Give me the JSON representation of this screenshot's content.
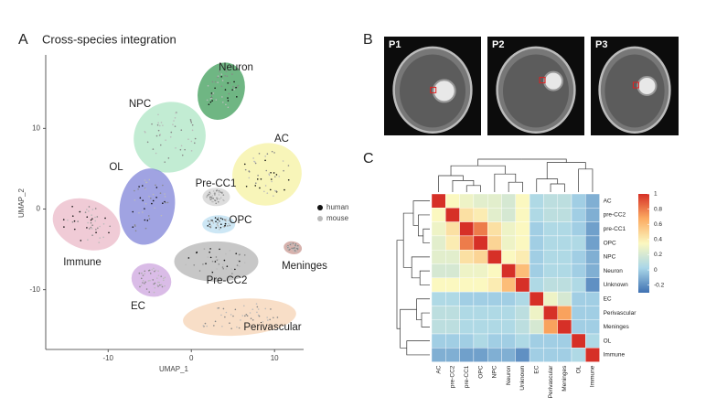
{
  "panels": {
    "a": "A",
    "b": "B",
    "c": "C"
  },
  "images": [
    {
      "label": "P1"
    },
    {
      "label": "P2"
    },
    {
      "label": "P3"
    }
  ],
  "chart_data": [
    {
      "type": "scatter",
      "title": "Cross-species integration",
      "x_label": "UMAP_1",
      "y_label": "UMAP_2",
      "xlim": [
        -17.5,
        13.5
      ],
      "ylim": [
        -17.4,
        19.1
      ],
      "xticks": [
        -10,
        0,
        10
      ],
      "yticks": [
        -10,
        0,
        10
      ],
      "grid": false,
      "clusters": [
        {
          "name": "Neuron",
          "color": "#3f9e5a",
          "x": 3.6,
          "y": 14.6
        },
        {
          "name": "NPC",
          "color": "#aee6c4",
          "x": -2.6,
          "y": 8.9
        },
        {
          "name": "AC",
          "color": "#f6f1a2",
          "x": 9.1,
          "y": 4.3
        },
        {
          "name": "OL",
          "color": "#8084d8",
          "x": -5.3,
          "y": 0.3
        },
        {
          "name": "Immune",
          "color": "#ebbac8",
          "x": -12.6,
          "y": -1.9
        },
        {
          "name": "Pre-CC1",
          "color": "#d2d2d2",
          "x": 3.0,
          "y": 1.5
        },
        {
          "name": "OPC",
          "color": "#bcdff2",
          "x": 3.3,
          "y": -1.9
        },
        {
          "name": "Pre-CC2",
          "color": "#b4b4b4",
          "x": 3.0,
          "y": -6.5
        },
        {
          "name": "EC",
          "color": "#cda5df",
          "x": -4.8,
          "y": -8.8
        },
        {
          "name": "Meninges",
          "color": "#c99891",
          "x": 12.2,
          "y": -4.8
        },
        {
          "name": "Perivascular",
          "color": "#f6d3b4",
          "x": 5.8,
          "y": -13.4
        }
      ],
      "legend_items": [
        {
          "name": "human",
          "color": "#111111"
        },
        {
          "name": "mouse",
          "color": "#bbbbbb"
        }
      ]
    },
    {
      "type": "heatmap",
      "rows": [
        "AC",
        "pre-CC2",
        "pre-CC1",
        "OPC",
        "NPC",
        "Neuron",
        "Unknown",
        "EC",
        "Perivascular",
        "Meninges",
        "OL",
        "Immune"
      ],
      "columns": [
        "AC",
        "pre-CC2",
        "pre-CC1",
        "OPC",
        "NPC",
        "Neuron",
        "Unknown",
        "EC",
        "Perivascular",
        "Meninges",
        "OL",
        "Immune"
      ],
      "values": [
        [
          1,
          0.35,
          0.3,
          0.25,
          0.25,
          0.2,
          0.35,
          0.05,
          0.1,
          0.1,
          0,
          -0.1
        ],
        [
          0.35,
          1,
          0.45,
          0.4,
          0.25,
          0.2,
          0.35,
          0.05,
          0.1,
          0.1,
          0,
          -0.1
        ],
        [
          0.3,
          0.45,
          1,
          0.8,
          0.45,
          0.3,
          0.35,
          0,
          0.05,
          0.05,
          0,
          -0.15
        ],
        [
          0.25,
          0.4,
          0.8,
          1,
          0.5,
          0.3,
          0.35,
          0,
          0.05,
          0.05,
          0.05,
          -0.15
        ],
        [
          0.25,
          0.25,
          0.45,
          0.5,
          1,
          0.35,
          0.4,
          0,
          0.05,
          0.05,
          0,
          -0.1
        ],
        [
          0.2,
          0.2,
          0.3,
          0.3,
          0.35,
          1,
          0.6,
          0,
          0.05,
          0.05,
          0,
          -0.1
        ],
        [
          0.35,
          0.35,
          0.35,
          0.35,
          0.4,
          0.6,
          1,
          0.05,
          0.1,
          0.1,
          0.05,
          -0.2
        ],
        [
          0.05,
          0.05,
          0,
          0,
          0,
          0,
          0.05,
          1,
          0.3,
          0.2,
          0,
          0
        ],
        [
          0.1,
          0.1,
          0.05,
          0.05,
          0.05,
          0.05,
          0.1,
          0.3,
          1,
          0.7,
          0,
          0
        ],
        [
          0.1,
          0.1,
          0.05,
          0.05,
          0.05,
          0.05,
          0.1,
          0.2,
          0.7,
          1,
          0,
          0
        ],
        [
          0,
          0,
          0,
          0.05,
          0,
          0,
          0.05,
          0,
          0,
          0,
          1,
          0.05
        ],
        [
          -0.1,
          -0.1,
          -0.15,
          -0.15,
          -0.1,
          -0.1,
          -0.2,
          0,
          0,
          0,
          0.05,
          1
        ]
      ],
      "zlim": [
        -0.3,
        1
      ],
      "zticks": [
        1,
        0.8,
        0.6,
        0.4,
        0.2,
        0,
        -0.2
      ],
      "colors": [
        "#3f71b2",
        "#a9d6e8",
        "#fbf8c0",
        "#fcab62",
        "#d63027"
      ]
    }
  ]
}
